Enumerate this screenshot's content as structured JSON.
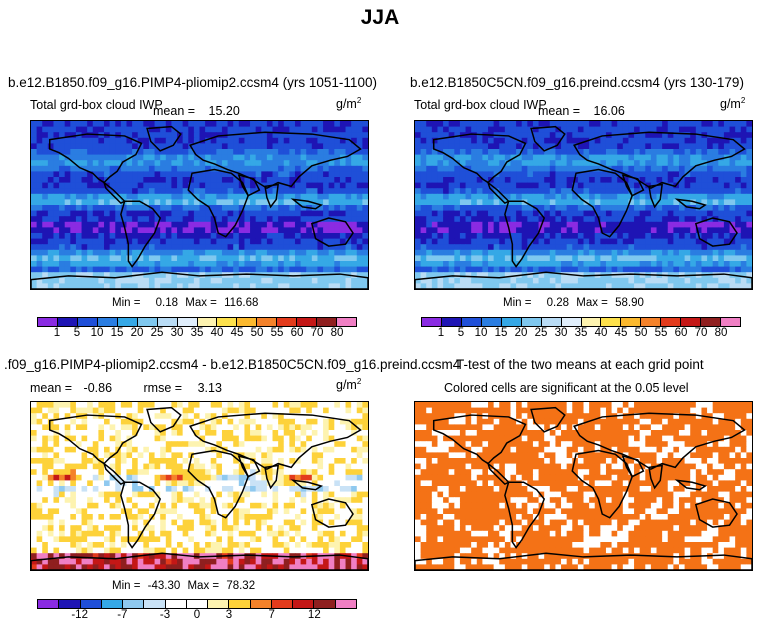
{
  "title": "JJA",
  "chart_data": [
    {
      "type": "heatmap",
      "panel": "top-left",
      "title": "b.e12.B1850.f09_g16.PIMP4-pliomip2.ccsm4 (yrs 1051-1100)",
      "variable": "Total grd-box cloud IWP",
      "mean_label": "mean =",
      "mean": "15.20",
      "units": "g/m",
      "units_exp": "2",
      "min_label": "Min =",
      "min": "0.18",
      "max_label": "Max =",
      "max": "116.68",
      "levels": [
        "1",
        "5",
        "10",
        "15",
        "20",
        "25",
        "30",
        "35",
        "40",
        "45",
        "50",
        "55",
        "60",
        "70",
        "80"
      ],
      "colors": [
        "#8a2be2",
        "#1e14b4",
        "#1f4fd8",
        "#2a7de1",
        "#35a8e6",
        "#7fc8ef",
        "#b9dcf5",
        "#e0eefb",
        "#fdf3b0",
        "#fde14b",
        "#fbb92e",
        "#f4822a",
        "#e33b1c",
        "#c41716",
        "#8f1f1f",
        "#f07fc4"
      ]
    },
    {
      "type": "heatmap",
      "panel": "top-right",
      "title": "b.e12.B1850C5CN.f09_g16.preind.ccsm4 (yrs 130-179)",
      "variable": "Total grd-box cloud IWP",
      "mean_label": "mean =",
      "mean": "16.06",
      "units": "g/m",
      "units_exp": "2",
      "min_label": "Min =",
      "min": "0.28",
      "max_label": "Max =",
      "max": "58.90",
      "levels": [
        "1",
        "5",
        "10",
        "15",
        "20",
        "25",
        "30",
        "35",
        "40",
        "45",
        "50",
        "55",
        "60",
        "70",
        "80"
      ],
      "colors": [
        "#8a2be2",
        "#1e14b4",
        "#1f4fd8",
        "#2a7de1",
        "#35a8e6",
        "#7fc8ef",
        "#b9dcf5",
        "#e0eefb",
        "#fdf3b0",
        "#fde14b",
        "#fbb92e",
        "#f4822a",
        "#e33b1c",
        "#c41716",
        "#8f1f1f",
        "#f07fc4"
      ]
    },
    {
      "type": "heatmap",
      "panel": "bottom-left",
      "title": ".f09_g16.PIMP4-pliomip2.ccsm4 - b.e12.B1850C5CN.f09_g16.preind.ccsm4",
      "mean_label": "mean =",
      "mean": "-0.86",
      "rmse_label": "rmse =",
      "rmse": "3.13",
      "units": "g/m",
      "units_exp": "2",
      "min_label": "Min =",
      "min": "-43.30",
      "max_label": "Max =",
      "max": "78.32",
      "levels": [
        "-12",
        "-7",
        "-3",
        "0",
        "3",
        "7",
        "12"
      ],
      "colors": [
        "#8a2be2",
        "#1e14b4",
        "#1f4fd8",
        "#35a8e6",
        "#8fc9ef",
        "#c9e2f6",
        "#ffffff",
        "#ffffff",
        "#fdf3b0",
        "#fdd23a",
        "#f4822a",
        "#e33b1c",
        "#c41716",
        "#8f1f1f",
        "#f07fc4"
      ]
    },
    {
      "type": "heatmap",
      "panel": "bottom-right",
      "title": "T-test of the two means at each grid point",
      "subtitle": "Colored cells are significant at the 0.05 level",
      "colors": [
        "#f47216"
      ]
    }
  ]
}
